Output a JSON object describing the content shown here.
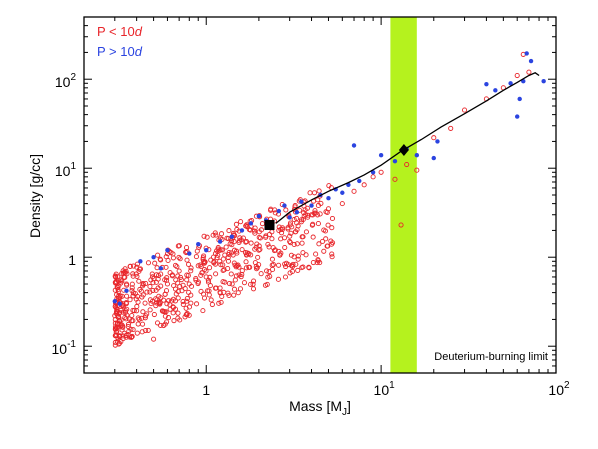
{
  "chart_data": {
    "type": "scatter",
    "title": "",
    "xlabel": "Mass [M",
    "xlabel_sub": "J",
    "xlabel_close": "]",
    "ylabel": "Density [g/cc]",
    "x_scale": "log",
    "y_scale": "log",
    "xlim": [
      0.2,
      100
    ],
    "ylim": [
      0.05,
      500
    ],
    "x_ticks": [
      {
        "value": 1,
        "label": "1",
        "exp": ""
      },
      {
        "value": 10,
        "label": "10",
        "exp": "1"
      },
      {
        "value": 100,
        "label": "10",
        "exp": "2"
      }
    ],
    "y_ticks": [
      {
        "value": 0.1,
        "label": "10",
        "exp": "-1"
      },
      {
        "value": 1,
        "label": "1",
        "exp": ""
      },
      {
        "value": 10,
        "label": "10",
        "exp": "1"
      },
      {
        "value": 100,
        "label": "10",
        "exp": "2"
      }
    ],
    "grid": false,
    "legend_position": "top-left",
    "legend": [
      {
        "label": "P < 10",
        "italic": "d",
        "color": "#e8262b",
        "marker": "open-circle"
      },
      {
        "label": "P > 10",
        "italic": "d",
        "color": "#2b44e0",
        "marker": "filled-circle"
      }
    ],
    "band": {
      "x_range": [
        11.3,
        16.0
      ],
      "color": "#b5f21e",
      "label": "Deuterium-burning limit"
    },
    "curve": {
      "points": [
        [
          2.5,
          2.4
        ],
        [
          3,
          3.2
        ],
        [
          4,
          4.4
        ],
        [
          5,
          5.5
        ],
        [
          6.5,
          6.9
        ],
        [
          8,
          8.4
        ],
        [
          10,
          10.8
        ],
        [
          13,
          15.5
        ],
        [
          17,
          21
        ],
        [
          22,
          29
        ],
        [
          30,
          41
        ],
        [
          40,
          57
        ],
        [
          50,
          75
        ],
        [
          60,
          92
        ],
        [
          70,
          110
        ],
        [
          76,
          118
        ],
        [
          80,
          110
        ]
      ]
    },
    "markers": [
      {
        "name": "square",
        "x": 2.3,
        "y": 2.3,
        "color": "#000000"
      },
      {
        "name": "diamond",
        "x": 13.5,
        "y": 16,
        "color": "#000000"
      }
    ],
    "series_red_anchor": [
      [
        0.3,
        0.22
      ],
      [
        0.32,
        0.35
      ],
      [
        0.35,
        0.5
      ],
      [
        0.38,
        0.65
      ],
      [
        0.4,
        0.25
      ],
      [
        0.45,
        0.15
      ],
      [
        0.5,
        0.12
      ],
      [
        0.55,
        0.35
      ],
      [
        0.6,
        0.5
      ],
      [
        0.7,
        0.7
      ],
      [
        0.8,
        0.5
      ],
      [
        0.9,
        0.8
      ],
      [
        1.0,
        0.6
      ],
      [
        1.1,
        1.0
      ],
      [
        1.2,
        0.45
      ],
      [
        1.3,
        1.3
      ],
      [
        1.5,
        0.8
      ],
      [
        1.7,
        1.5
      ],
      [
        2.0,
        1.2
      ],
      [
        2.3,
        1.8
      ],
      [
        2.6,
        2.0
      ],
      [
        3.0,
        1.5
      ],
      [
        3.5,
        2.5
      ],
      [
        4.0,
        3.0
      ],
      [
        5.0,
        3.5
      ],
      [
        6.0,
        4.0
      ],
      [
        7.0,
        5.5
      ],
      [
        8.0,
        6.5
      ],
      [
        9.0,
        8.0
      ],
      [
        10.0,
        9.0
      ],
      [
        12.0,
        7.5
      ],
      [
        13.0,
        2.3
      ],
      [
        14.0,
        11.0
      ],
      [
        16.0,
        9.5
      ],
      [
        20.0,
        22.0
      ],
      [
        25.0,
        28.0
      ],
      [
        30.0,
        45.0
      ],
      [
        40.0,
        60.0
      ],
      [
        50.0,
        80.0
      ],
      [
        60.0,
        110.0
      ],
      [
        65.0,
        190.0
      ],
      [
        70.0,
        120.0
      ]
    ],
    "series_blue": [
      [
        0.3,
        0.32
      ],
      [
        0.32,
        0.3
      ],
      [
        0.35,
        0.42
      ],
      [
        0.42,
        0.9
      ],
      [
        0.5,
        1.0
      ],
      [
        0.55,
        0.75
      ],
      [
        0.6,
        1.2
      ],
      [
        0.8,
        1.1
      ],
      [
        0.9,
        1.4
      ],
      [
        1.0,
        1.2
      ],
      [
        1.2,
        1.5
      ],
      [
        1.4,
        1.7
      ],
      [
        1.6,
        2.0
      ],
      [
        1.8,
        2.4
      ],
      [
        2.0,
        2.9
      ],
      [
        2.2,
        2.6
      ],
      [
        2.6,
        3.3
      ],
      [
        2.8,
        3.8
      ],
      [
        3.0,
        2.8
      ],
      [
        3.3,
        3.2
      ],
      [
        3.5,
        4.2
      ],
      [
        4.0,
        3.8
      ],
      [
        4.5,
        5.0
      ],
      [
        5.0,
        4.6
      ],
      [
        5.5,
        5.8
      ],
      [
        6.0,
        5.3
      ],
      [
        6.5,
        6.5
      ],
      [
        7.0,
        18.0
      ],
      [
        7.5,
        7.2
      ],
      [
        9.0,
        9.0
      ],
      [
        10.0,
        14.0
      ],
      [
        12.0,
        12.0
      ],
      [
        14.0,
        16.5
      ],
      [
        16.0,
        14.0
      ],
      [
        20.0,
        13.0
      ],
      [
        21.0,
        20.0
      ],
      [
        40.0,
        88.0
      ],
      [
        45.0,
        75.0
      ],
      [
        55.0,
        90.0
      ],
      [
        60.0,
        38.0
      ],
      [
        62.0,
        60.0
      ],
      [
        65.0,
        95.0
      ],
      [
        68.0,
        195.0
      ],
      [
        72.0,
        160.0
      ],
      [
        85.0,
        95.0
      ]
    ]
  }
}
